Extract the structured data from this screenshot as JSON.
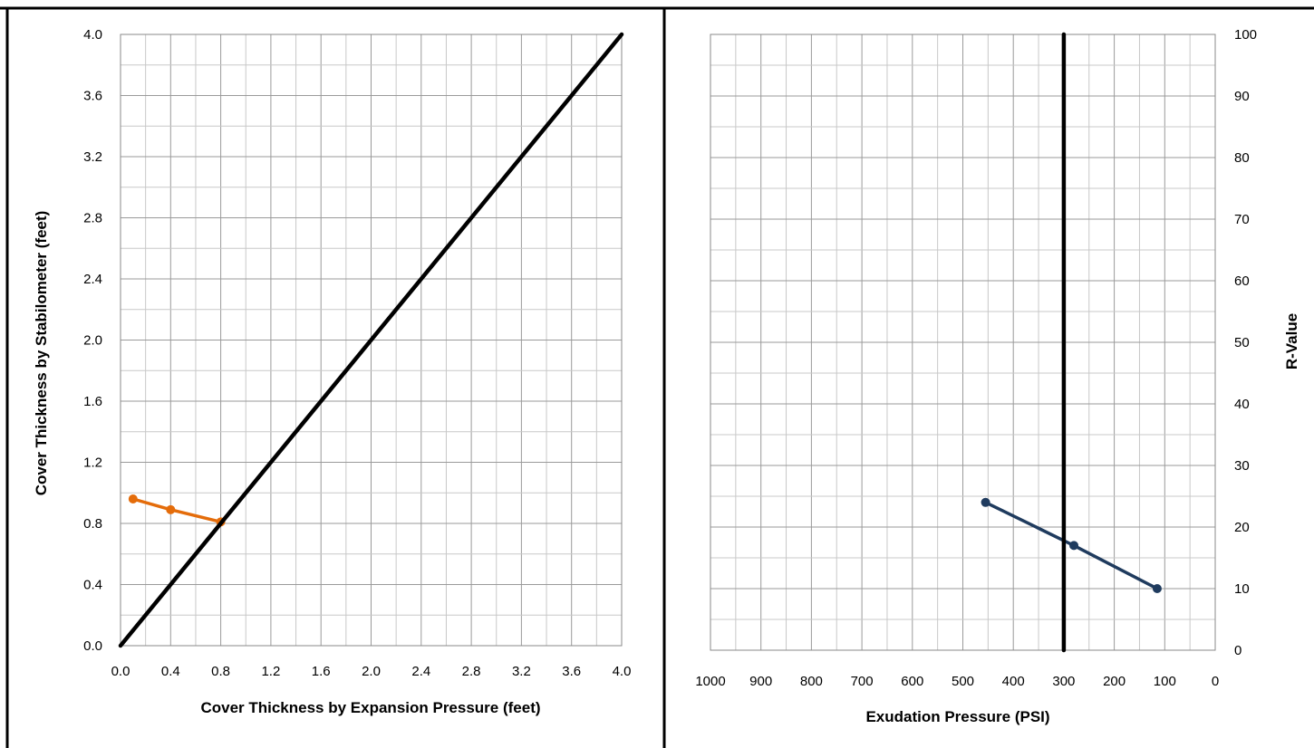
{
  "chart_data": [
    {
      "type": "line",
      "title": "",
      "xlabel": "Cover Thickness by Expansion Pressure (feet)",
      "ylabel": "Cover Thickness by Stabilometer (feet)",
      "xlim": [
        0.0,
        4.0
      ],
      "ylim": [
        0.0,
        4.0
      ],
      "x_ticks": [
        "0.0",
        "0.4",
        "0.8",
        "1.2",
        "1.6",
        "2.0",
        "2.4",
        "2.8",
        "3.2",
        "3.6",
        "4.0"
      ],
      "y_ticks": [
        "0.0",
        "0.4",
        "0.8",
        "1.2",
        "1.6",
        "2.0",
        "2.4",
        "2.8",
        "3.2",
        "3.6",
        "4.0"
      ],
      "grid": true,
      "series": [
        {
          "color": "#E46C0A",
          "markers": true,
          "points": [
            [
              0.1,
              0.96
            ],
            [
              0.4,
              0.89
            ],
            [
              0.8,
              0.81
            ]
          ]
        },
        {
          "color": "#000000",
          "markers": false,
          "points": [
            [
              0.0,
              0.0
            ],
            [
              4.0,
              4.0
            ]
          ]
        }
      ]
    },
    {
      "type": "line",
      "title": "",
      "xlabel": "Exudation Pressure (PSI)",
      "ylabel": "R-Value",
      "xlim": [
        1000,
        0
      ],
      "x_reversed": true,
      "ylim": [
        0,
        100
      ],
      "y_axis_side": "right",
      "x_ticks": [
        "1000",
        "900",
        "800",
        "700",
        "600",
        "500",
        "400",
        "300",
        "200",
        "100",
        "0"
      ],
      "y_ticks": [
        "0",
        "10",
        "20",
        "30",
        "40",
        "50",
        "60",
        "70",
        "80",
        "90",
        "100"
      ],
      "grid": true,
      "series": [
        {
          "color": "#1F3B5E",
          "markers": true,
          "points": [
            [
              455,
              24
            ],
            [
              280,
              17
            ],
            [
              115,
              10
            ]
          ]
        },
        {
          "color": "#000000",
          "markers": false,
          "points": [
            [
              300,
              0
            ],
            [
              300,
              100
            ]
          ]
        }
      ]
    }
  ]
}
